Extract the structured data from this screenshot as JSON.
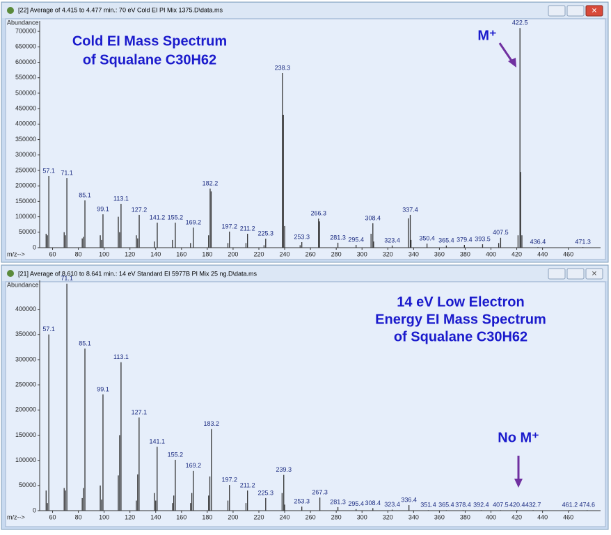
{
  "chart_data": [
    {
      "type": "bar",
      "window_title": "[22] Average of 4.415 to 4.477 min.: 70 eV Cold EI PI Mix 1375.D\\data.ms",
      "title": [
        "Cold EI Mass Spectrum",
        "of Squalane C30H62"
      ],
      "annotation": "M⁺",
      "y_label": "Abundance",
      "x_label": "m/z-->",
      "xlim": [
        50,
        485
      ],
      "ylim": [
        0,
        725000
      ],
      "xticks": [
        60,
        80,
        100,
        120,
        140,
        160,
        180,
        200,
        220,
        240,
        260,
        280,
        300,
        320,
        340,
        360,
        380,
        400,
        420,
        440,
        460
      ],
      "yticks": [
        0,
        50000,
        100000,
        150000,
        200000,
        250000,
        300000,
        350000,
        400000,
        450000,
        500000,
        550000,
        600000,
        650000,
        700000
      ],
      "series": [
        {
          "color": "#333333",
          "x": [
            57.1,
            71.1,
            85.1,
            99.1,
            113.1,
            127.2,
            141.2,
            155.2,
            169.2,
            182.2,
            197.2,
            211.2,
            225.3,
            238.3,
            253.3,
            266.3,
            281.3,
            295.4,
            308.4,
            323.4,
            337.4,
            350.4,
            365.4,
            379.4,
            393.5,
            407.5,
            422.5,
            436.4,
            471.3
          ],
          "values": [
            232000,
            225000,
            153000,
            108000,
            142000,
            106000,
            81000,
            81000,
            65000,
            191000,
            52000,
            45000,
            29000,
            565000,
            18000,
            94000,
            16000,
            9000,
            79000,
            7000,
            106000,
            13000,
            7000,
            9000,
            11000,
            32000,
            711000,
            2000,
            2000
          ]
        },
        {
          "color": "#333333",
          "x": [
            55,
            56,
            69,
            70,
            83,
            84,
            97,
            98,
            111,
            112,
            125,
            126,
            139,
            153,
            167,
            181,
            183,
            196,
            210,
            224,
            239,
            240,
            252,
            267,
            307,
            309,
            336,
            338,
            406,
            421,
            423,
            424
          ],
          "values": [
            45000,
            40000,
            50000,
            40000,
            30000,
            35000,
            40000,
            25000,
            100000,
            50000,
            40000,
            30000,
            20000,
            25000,
            15000,
            40000,
            182000,
            15000,
            15000,
            8000,
            430000,
            70000,
            8000,
            85000,
            45000,
            20000,
            95000,
            25000,
            15000,
            40000,
            245000,
            40000
          ]
        }
      ]
    },
    {
      "type": "bar",
      "window_title": "[21] Average of 8.610 to 8.641 min.: 14 eV Standard EI 5977B PI Mix 25 ng.D\\data.ms",
      "title": [
        "14 eV Low Electron",
        "Energy EI Mass Spectrum",
        "of Squalane C30H62"
      ],
      "annotation": "No M⁺",
      "y_label": "Abundance",
      "x_label": "m/z-->",
      "xlim": [
        50,
        485
      ],
      "ylim": [
        0,
        452000
      ],
      "xticks": [
        60,
        80,
        100,
        120,
        140,
        160,
        180,
        200,
        220,
        240,
        260,
        280,
        300,
        320,
        340,
        360,
        380,
        400,
        420,
        440,
        460
      ],
      "yticks": [
        0,
        50000,
        100000,
        150000,
        200000,
        250000,
        300000,
        350000,
        400000
      ],
      "series": [
        {
          "color": "#333333",
          "x": [
            57.1,
            71.1,
            85.1,
            99.1,
            113.1,
            127.1,
            141.1,
            155.2,
            169.2,
            183.2,
            197.2,
            211.2,
            225.3,
            239.3,
            253.3,
            267.3,
            281.3,
            295.4,
            308.4,
            323.4,
            336.4,
            351.4,
            365.4,
            378.4,
            392.4,
            407.5,
            420.4,
            432.7,
            461.2,
            474.6
          ],
          "values": [
            350000,
            451000,
            322000,
            231000,
            295000,
            185000,
            127000,
            101000,
            79000,
            162000,
            51000,
            40000,
            25000,
            71000,
            8000,
            26000,
            7000,
            3000,
            5000,
            2000,
            11000,
            1000,
            1000,
            1000,
            1000,
            1000,
            1000,
            1000,
            1000,
            1000
          ]
        },
        {
          "color": "#333333",
          "x": [
            55,
            56,
            69,
            70,
            83,
            84,
            97,
            98,
            111,
            112,
            125,
            126,
            139,
            140,
            153,
            154,
            167,
            168,
            181,
            182,
            196,
            210,
            238,
            240
          ],
          "values": [
            40000,
            15000,
            45000,
            40000,
            25000,
            45000,
            50000,
            22000,
            70000,
            150000,
            20000,
            72000,
            35000,
            20000,
            15000,
            30000,
            15000,
            35000,
            30000,
            68000,
            20000,
            15000,
            35000,
            12000
          ]
        }
      ]
    }
  ]
}
